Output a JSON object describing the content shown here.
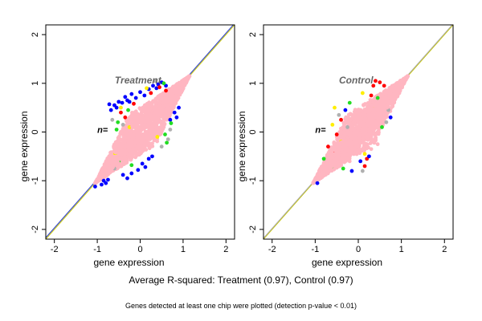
{
  "caption": "Average R-squared: Treatment (0.97), Control (0.97)",
  "footnote": "Genes detected at least one chip were plotted (detection p-value < 0.01)",
  "colors": {
    "blue": "#0000ff",
    "red": "#ff0000",
    "green": "#22dd22",
    "yellow": "#ffee00",
    "grey": "#b0b0b0",
    "pink": "#ffb6c1"
  },
  "chart_data": [
    {
      "type": "scatter",
      "title": "",
      "annotation": "Treatment",
      "count_label": "n=",
      "xlabel": "gene expression",
      "ylabel": "gene expression",
      "xlim": [
        -2.2,
        2.2
      ],
      "ylim": [
        -2.2,
        2.2
      ],
      "xticks": [
        "-2",
        "-1",
        "0",
        "1",
        "2"
      ],
      "yticks": [
        "-2",
        "-1",
        "0",
        "1",
        "2"
      ],
      "tick_values": [
        -2,
        -1,
        0,
        1,
        2
      ],
      "grid": false,
      "reference_lines": [
        {
          "color": "#c8c800",
          "slope": 1,
          "intercept": 0
        },
        {
          "color": "#2233cc",
          "slope": 1,
          "intercept": 0.03
        }
      ],
      "bulk": {
        "color": "#ffb6c1",
        "x_range": [
          -1.1,
          1.2
        ],
        "y_range": [
          -1.1,
          1.2
        ]
      },
      "points": [
        {
          "x": -0.72,
          "y": 0.57,
          "c": "blue"
        },
        {
          "x": -0.68,
          "y": 0.45,
          "c": "blue"
        },
        {
          "x": -0.6,
          "y": 0.55,
          "c": "blue"
        },
        {
          "x": -0.55,
          "y": 0.5,
          "c": "blue"
        },
        {
          "x": -0.5,
          "y": 0.62,
          "c": "blue"
        },
        {
          "x": -0.42,
          "y": 0.6,
          "c": "blue"
        },
        {
          "x": -0.35,
          "y": 0.72,
          "c": "blue"
        },
        {
          "x": -0.3,
          "y": 0.65,
          "c": "blue"
        },
        {
          "x": -0.2,
          "y": 0.78,
          "c": "blue"
        },
        {
          "x": -0.1,
          "y": 0.7,
          "c": "blue"
        },
        {
          "x": 0.0,
          "y": 0.82,
          "c": "blue"
        },
        {
          "x": 0.1,
          "y": 0.75,
          "c": "blue"
        },
        {
          "x": 0.2,
          "y": 0.88,
          "c": "blue"
        },
        {
          "x": 0.3,
          "y": 0.95,
          "c": "blue"
        },
        {
          "x": 0.42,
          "y": 0.98,
          "c": "blue"
        },
        {
          "x": 0.5,
          "y": 1.02,
          "c": "blue"
        },
        {
          "x": 0.38,
          "y": 0.9,
          "c": "blue"
        },
        {
          "x": -0.25,
          "y": 0.62,
          "c": "blue"
        },
        {
          "x": -0.85,
          "y": -1.0,
          "c": "blue"
        },
        {
          "x": -0.8,
          "y": -1.05,
          "c": "blue"
        },
        {
          "x": -0.9,
          "y": -1.08,
          "c": "blue"
        },
        {
          "x": -0.75,
          "y": -0.98,
          "c": "blue"
        },
        {
          "x": -0.3,
          "y": -0.95,
          "c": "blue"
        },
        {
          "x": -0.2,
          "y": -0.85,
          "c": "blue"
        },
        {
          "x": -0.05,
          "y": -0.78,
          "c": "blue"
        },
        {
          "x": 0.05,
          "y": -0.65,
          "c": "blue"
        },
        {
          "x": 0.12,
          "y": -0.72,
          "c": "blue"
        },
        {
          "x": 0.2,
          "y": -0.55,
          "c": "blue"
        },
        {
          "x": 0.28,
          "y": -0.5,
          "c": "blue"
        },
        {
          "x": -0.4,
          "y": -0.88,
          "c": "blue"
        },
        {
          "x": 0.8,
          "y": 0.4,
          "c": "blue"
        },
        {
          "x": 0.85,
          "y": 0.3,
          "c": "blue"
        },
        {
          "x": 0.9,
          "y": 0.5,
          "c": "blue"
        },
        {
          "x": 0.7,
          "y": 0.25,
          "c": "blue"
        },
        {
          "x": -1.05,
          "y": -1.12,
          "c": "blue"
        },
        {
          "x": 0.6,
          "y": 0.95,
          "c": "blue"
        },
        {
          "x": -0.45,
          "y": 0.4,
          "c": "red"
        },
        {
          "x": -0.15,
          "y": 0.58,
          "c": "red"
        },
        {
          "x": 0.25,
          "y": 0.8,
          "c": "red"
        },
        {
          "x": -0.35,
          "y": 0.3,
          "c": "red"
        },
        {
          "x": 0.45,
          "y": 0.92,
          "c": "red"
        },
        {
          "x": 0.6,
          "y": 0.85,
          "c": "red"
        },
        {
          "x": -0.28,
          "y": 0.45,
          "c": "green"
        },
        {
          "x": -0.52,
          "y": 0.2,
          "c": "green"
        },
        {
          "x": 0.55,
          "y": 1.0,
          "c": "green"
        },
        {
          "x": -0.55,
          "y": 0.05,
          "c": "green"
        },
        {
          "x": 0.72,
          "y": 0.18,
          "c": "green"
        },
        {
          "x": 0.58,
          "y": -0.05,
          "c": "green"
        },
        {
          "x": 0.62,
          "y": -0.22,
          "c": "green"
        },
        {
          "x": -0.5,
          "y": -0.6,
          "c": "green"
        },
        {
          "x": -0.2,
          "y": -0.68,
          "c": "green"
        },
        {
          "x": -0.65,
          "y": 0.25,
          "c": "grey"
        },
        {
          "x": -0.4,
          "y": 0.15,
          "c": "grey"
        },
        {
          "x": 0.7,
          "y": 0.05,
          "c": "grey"
        },
        {
          "x": 0.65,
          "y": -0.15,
          "c": "grey"
        },
        {
          "x": 0.5,
          "y": -0.3,
          "c": "grey"
        },
        {
          "x": -0.6,
          "y": -0.75,
          "c": "grey"
        },
        {
          "x": 0.35,
          "y": 1.05,
          "c": "grey"
        },
        {
          "x": -0.25,
          "y": 0.1,
          "c": "yellow"
        },
        {
          "x": 0.4,
          "y": -0.1,
          "c": "yellow"
        },
        {
          "x": -0.45,
          "y": 0.5,
          "c": "yellow"
        },
        {
          "x": 0.15,
          "y": 0.9,
          "c": "yellow"
        },
        {
          "x": -0.58,
          "y": -0.45,
          "c": "yellow"
        }
      ]
    },
    {
      "type": "scatter",
      "title": "",
      "annotation": "Control",
      "count_label": "n=",
      "xlabel": "gene expression",
      "ylabel": "gene expression",
      "xlim": [
        -2.2,
        2.2
      ],
      "ylim": [
        -2.2,
        2.2
      ],
      "xticks": [
        "-2",
        "-1",
        "0",
        "1",
        "2"
      ],
      "yticks": [
        "-2",
        "-1",
        "0",
        "1",
        "2"
      ],
      "tick_values": [
        -2,
        -1,
        0,
        1,
        2
      ],
      "grid": false,
      "reference_lines": [
        {
          "color": "#c8c800",
          "slope": 1,
          "intercept": 0
        },
        {
          "color": "#aaaaaa",
          "slope": 1,
          "intercept": 0.02
        }
      ],
      "bulk": {
        "color": "#ffb6c1",
        "x_range": [
          -1.1,
          1.2
        ],
        "y_range": [
          -1.1,
          1.2
        ]
      },
      "points": [
        {
          "x": 0.4,
          "y": 1.05,
          "c": "red"
        },
        {
          "x": 0.35,
          "y": 0.95,
          "c": "red"
        },
        {
          "x": 0.5,
          "y": 1.02,
          "c": "red"
        },
        {
          "x": -0.4,
          "y": 0.25,
          "c": "red"
        },
        {
          "x": -0.5,
          "y": -0.05,
          "c": "red"
        },
        {
          "x": 0.65,
          "y": 0.55,
          "c": "red"
        },
        {
          "x": 0.6,
          "y": 0.95,
          "c": "red"
        },
        {
          "x": -0.7,
          "y": -0.3,
          "c": "red"
        },
        {
          "x": 0.2,
          "y": -0.55,
          "c": "red"
        },
        {
          "x": 0.15,
          "y": -0.7,
          "c": "red"
        },
        {
          "x": 0.3,
          "y": 0.75,
          "c": "red"
        },
        {
          "x": -0.55,
          "y": -0.45,
          "c": "red"
        },
        {
          "x": -0.3,
          "y": 0.45,
          "c": "blue"
        },
        {
          "x": -0.95,
          "y": -1.05,
          "c": "blue"
        },
        {
          "x": 0.05,
          "y": -0.6,
          "c": "blue"
        },
        {
          "x": 0.75,
          "y": 0.3,
          "c": "blue"
        },
        {
          "x": -0.15,
          "y": -0.8,
          "c": "blue"
        },
        {
          "x": 0.25,
          "y": -0.5,
          "c": "blue"
        },
        {
          "x": -0.2,
          "y": 0.6,
          "c": "green"
        },
        {
          "x": 0.45,
          "y": 0.7,
          "c": "green"
        },
        {
          "x": -0.8,
          "y": -0.55,
          "c": "green"
        },
        {
          "x": -0.35,
          "y": -0.75,
          "c": "green"
        },
        {
          "x": 0.55,
          "y": 0.1,
          "c": "green"
        },
        {
          "x": -0.6,
          "y": -0.7,
          "c": "green"
        },
        {
          "x": -0.45,
          "y": 0.35,
          "c": "grey"
        },
        {
          "x": 0.55,
          "y": 0.4,
          "c": "grey"
        },
        {
          "x": 0.65,
          "y": 0.2,
          "c": "grey"
        },
        {
          "x": 0.1,
          "y": -0.8,
          "c": "grey"
        },
        {
          "x": -0.25,
          "y": 0.1,
          "c": "grey"
        },
        {
          "x": 0.7,
          "y": 0.45,
          "c": "grey"
        },
        {
          "x": -0.55,
          "y": 0.5,
          "c": "yellow"
        },
        {
          "x": -0.6,
          "y": 0.15,
          "c": "yellow"
        },
        {
          "x": 0.35,
          "y": 0.55,
          "c": "yellow"
        },
        {
          "x": 0.1,
          "y": 0.8,
          "c": "yellow"
        },
        {
          "x": -0.4,
          "y": -0.2,
          "c": "yellow"
        },
        {
          "x": 0.15,
          "y": -0.45,
          "c": "yellow"
        },
        {
          "x": 0.45,
          "y": -0.25,
          "c": "pink"
        },
        {
          "x": -0.75,
          "y": -0.8,
          "c": "pink"
        },
        {
          "x": -0.2,
          "y": -0.6,
          "c": "pink"
        },
        {
          "x": 0.8,
          "y": 0.6,
          "c": "pink"
        },
        {
          "x": 0.3,
          "y": -0.35,
          "c": "pink"
        },
        {
          "x": -0.65,
          "y": -0.5,
          "c": "pink"
        }
      ]
    }
  ]
}
